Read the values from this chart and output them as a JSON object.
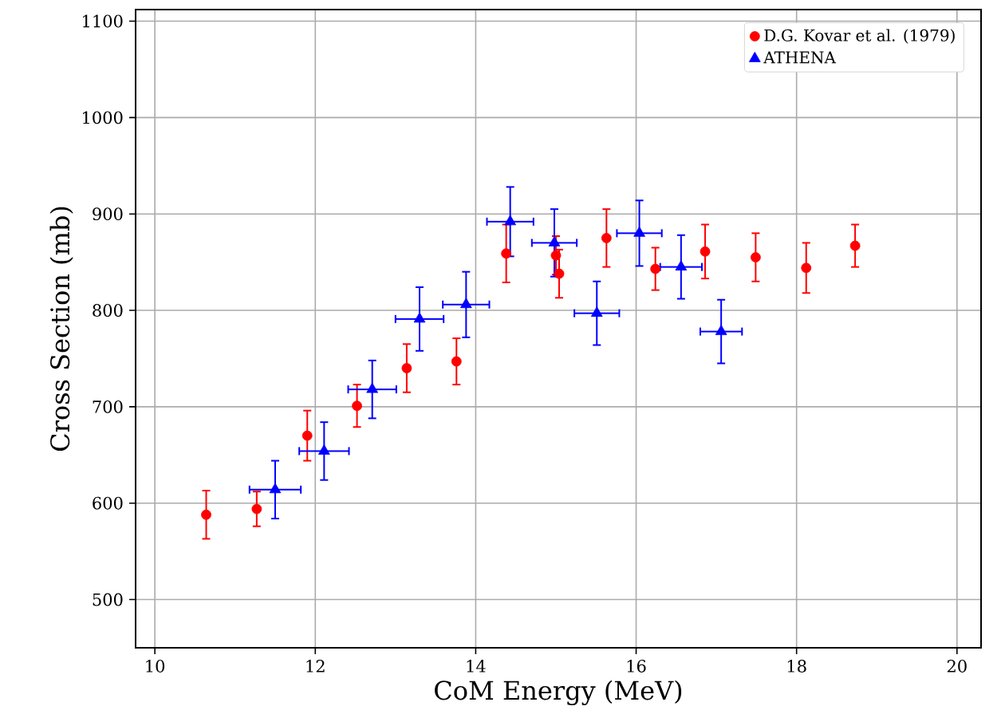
{
  "chart_data": {
    "type": "scatter",
    "xlabel": "CoM Energy (MeV)",
    "ylabel": "Cross Section (mb)",
    "xlim": [
      9.76,
      20.3
    ],
    "ylim": [
      450,
      1112
    ],
    "xticks": [
      10,
      12,
      14,
      16,
      18,
      20
    ],
    "yticks": [
      500,
      600,
      700,
      800,
      900,
      1000,
      1100
    ],
    "grid": true,
    "legend": "top right",
    "series": [
      {
        "name": "D.G. Kovar et al. (1979)",
        "color": "#ff0000",
        "marker": "circle",
        "x": [
          10.64,
          11.27,
          11.9,
          12.52,
          13.14,
          13.76,
          14.38,
          15.0,
          15.04,
          15.63,
          16.24,
          16.86,
          17.49,
          18.12,
          18.73
        ],
        "values": [
          588,
          594,
          670,
          701,
          740,
          747,
          859,
          857,
          838,
          875,
          843,
          861,
          855,
          844,
          867
        ],
        "errors": [
          25,
          18,
          26,
          22,
          25,
          24,
          30,
          20,
          25,
          30,
          22,
          28,
          25,
          26,
          22
        ]
      },
      {
        "name": "ATHENA",
        "color": "#0000ff",
        "marker": "triangle",
        "x": [
          11.5,
          12.11,
          12.71,
          13.3,
          13.88,
          14.43,
          14.98,
          15.51,
          16.04,
          16.56,
          17.06
        ],
        "values": [
          614,
          654,
          718,
          791,
          806,
          892,
          870,
          797,
          880,
          845,
          778
        ],
        "errors": [
          30,
          30,
          30,
          33,
          34,
          36,
          35,
          33,
          34,
          33,
          33
        ],
        "xerrors": [
          0.32,
          0.31,
          0.3,
          0.3,
          0.29,
          0.29,
          0.28,
          0.28,
          0.28,
          0.26,
          0.26
        ]
      }
    ]
  }
}
